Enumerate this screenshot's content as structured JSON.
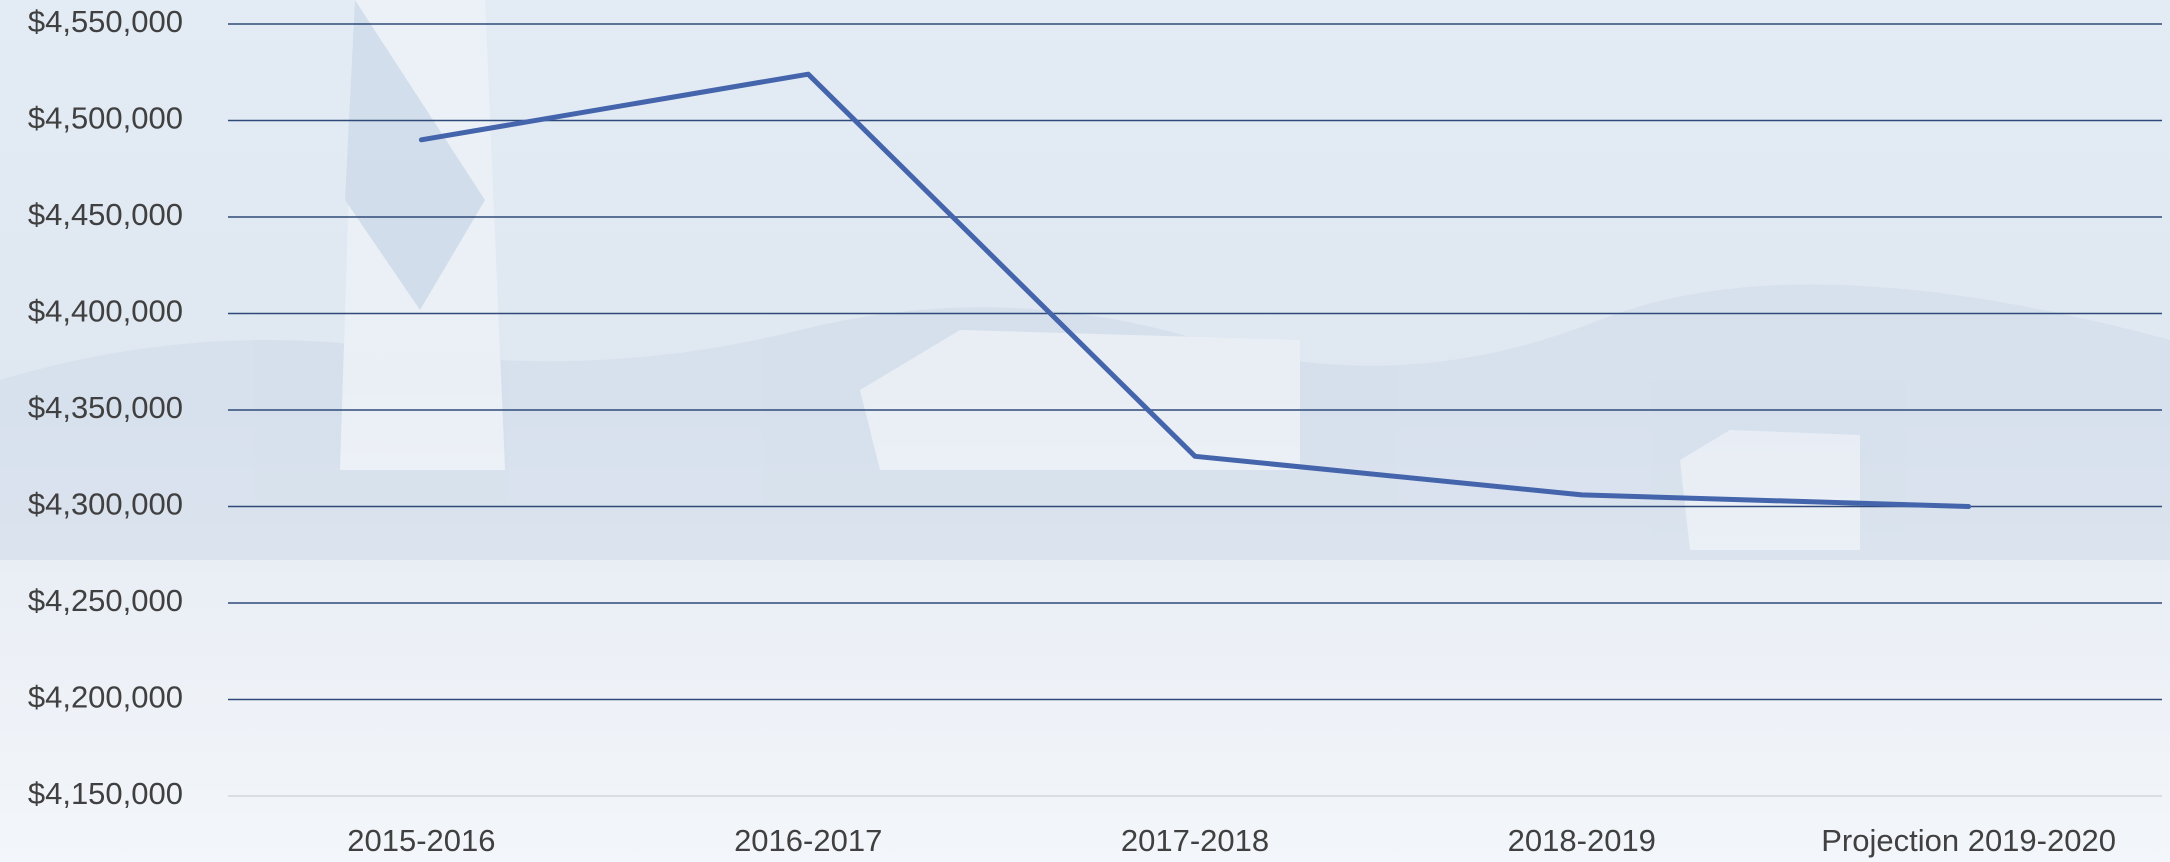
{
  "chart_data": {
    "type": "line",
    "categories": [
      "2015-2016",
      "2016-2017",
      "2017-2018",
      "2018-2019",
      "Projection 2019-2020"
    ],
    "values": [
      4490000,
      4524000,
      4326000,
      4306000,
      4300000
    ],
    "color": "#4464ac",
    "ylim": [
      4150000,
      4550000
    ],
    "yticks": [
      {
        "value": 4150000,
        "label": "$4,150,000"
      },
      {
        "value": 4200000,
        "label": "$4,200,000"
      },
      {
        "value": 4250000,
        "label": "$4,250,000"
      },
      {
        "value": 4300000,
        "label": "$4,300,000"
      },
      {
        "value": 4350000,
        "label": "$4,350,000"
      },
      {
        "value": 4400000,
        "label": "$4,400,000"
      },
      {
        "value": 4450000,
        "label": "$4,450,000"
      },
      {
        "value": 4500000,
        "label": "$4,500,000"
      },
      {
        "value": 4550000,
        "label": "$4,550,000"
      }
    ],
    "grid": true
  }
}
